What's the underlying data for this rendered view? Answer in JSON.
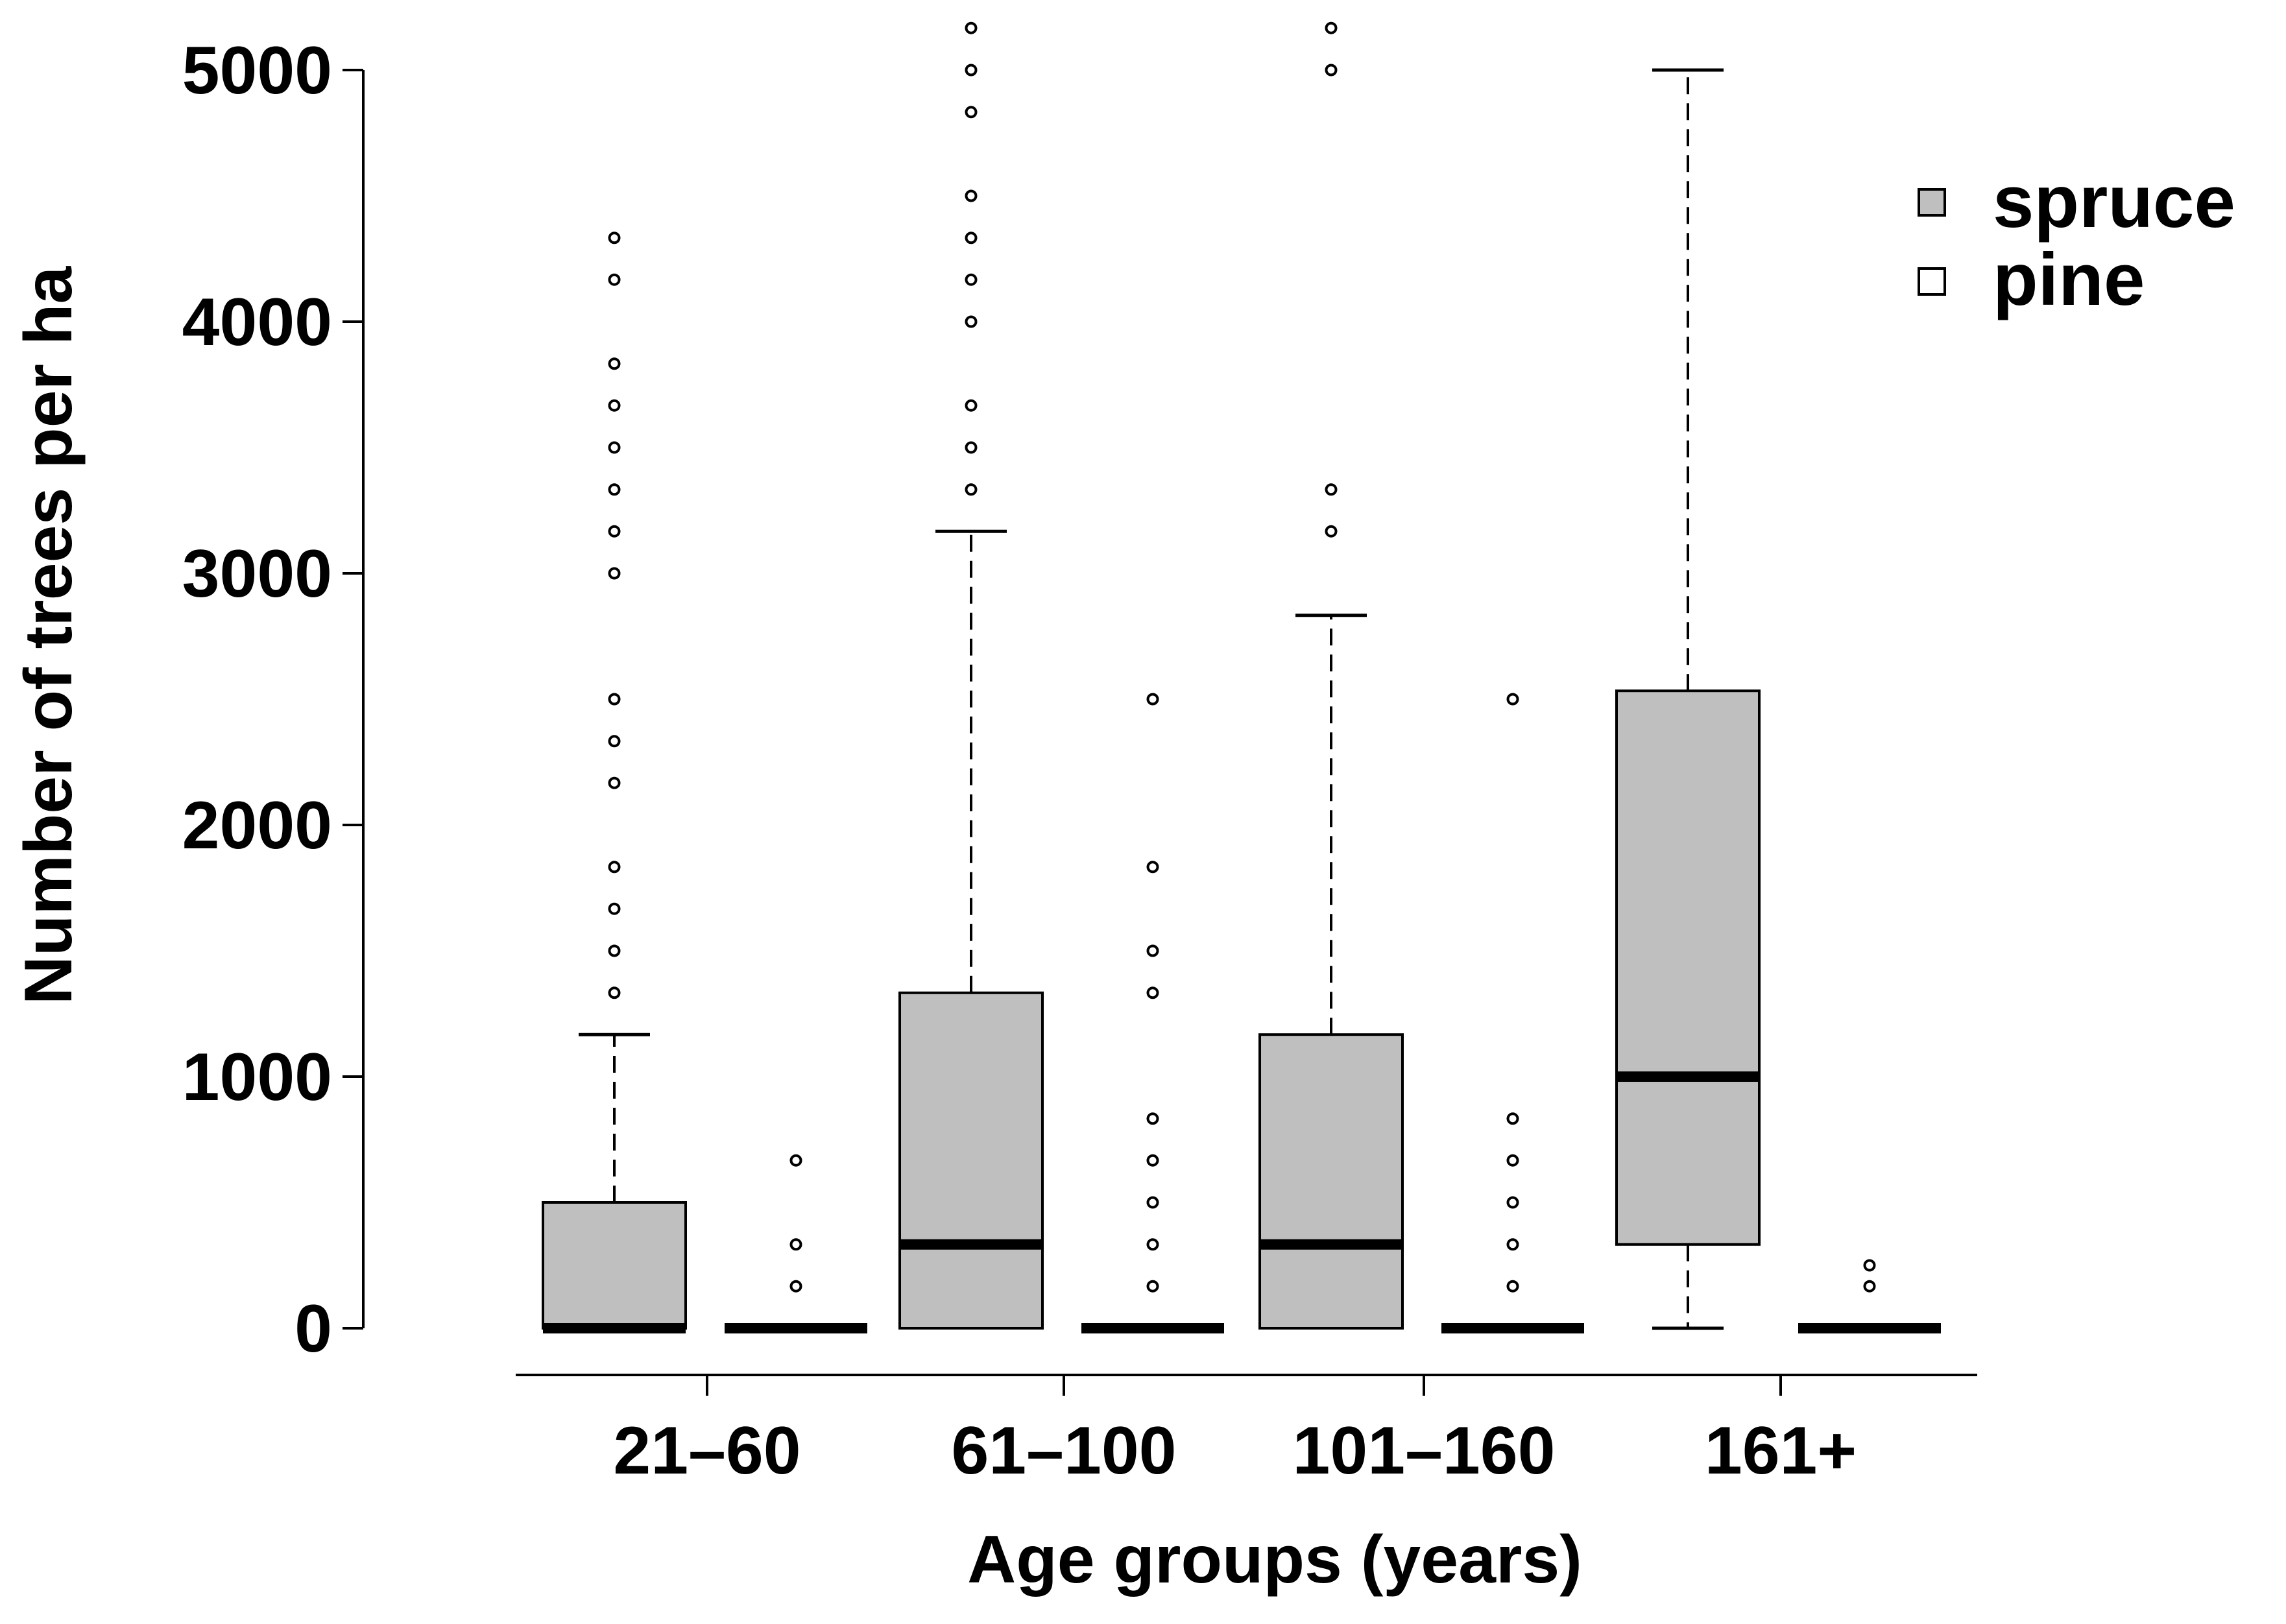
{
  "chart_data": {
    "type": "boxplot",
    "title": "",
    "xlabel": "Age groups (years)",
    "ylabel": "Number of trees per ha",
    "ylim": [
      0,
      5000
    ],
    "yticks": [
      0,
      1000,
      2000,
      3000,
      4000,
      5000
    ],
    "categories": [
      "21–60",
      "61–100",
      "101–160",
      "161+"
    ],
    "legend": {
      "position": "top-right",
      "entries": [
        "spruce",
        "pine"
      ]
    },
    "colors": {
      "spruce": "#bfbfbf",
      "pine": "#ffffff",
      "stroke": "#000000"
    },
    "series": [
      {
        "name": "spruce",
        "boxes": [
          {
            "category": "21–60",
            "q1": 0,
            "median": 0,
            "q3": 500,
            "whisker_low": 0,
            "whisker_high": 1167,
            "outliers": [
              1333,
              1500,
              1667,
              1833,
              2167,
              2333,
              2500,
              3000,
              3167,
              3333,
              3500,
              3667,
              3833,
              4167,
              4333
            ]
          },
          {
            "category": "61–100",
            "q1": 0,
            "median": 333,
            "q3": 1333,
            "whisker_low": 0,
            "whisker_high": 3167,
            "outliers": [
              3333,
              3500,
              3667,
              4000,
              4167,
              4333,
              4500,
              4833,
              5000,
              5167
            ]
          },
          {
            "category": "101–160",
            "q1": 0,
            "median": 333,
            "q3": 1167,
            "whisker_low": 0,
            "whisker_high": 2833,
            "outliers": [
              3167,
              3333,
              5000,
              5167
            ]
          },
          {
            "category": "161+",
            "q1": 333,
            "median": 1000,
            "q3": 2533,
            "whisker_low": 0,
            "whisker_high": 5000,
            "outliers": []
          }
        ]
      },
      {
        "name": "pine",
        "boxes": [
          {
            "category": "21–60",
            "q1": 0,
            "median": 0,
            "q3": 0,
            "whisker_low": 0,
            "whisker_high": 0,
            "outliers": [
              167,
              333,
              667
            ]
          },
          {
            "category": "61–100",
            "q1": 0,
            "median": 0,
            "q3": 0,
            "whisker_low": 0,
            "whisker_high": 0,
            "outliers": [
              167,
              333,
              500,
              667,
              833,
              1333,
              1500,
              1833,
              2500
            ]
          },
          {
            "category": "101–160",
            "q1": 0,
            "median": 0,
            "q3": 0,
            "whisker_low": 0,
            "whisker_high": 0,
            "outliers": [
              167,
              333,
              500,
              667,
              833,
              2500
            ]
          },
          {
            "category": "161+",
            "q1": 0,
            "median": 0,
            "q3": 0,
            "whisker_low": 0,
            "whisker_high": 0,
            "outliers": [
              167,
              250
            ]
          }
        ]
      }
    ]
  }
}
